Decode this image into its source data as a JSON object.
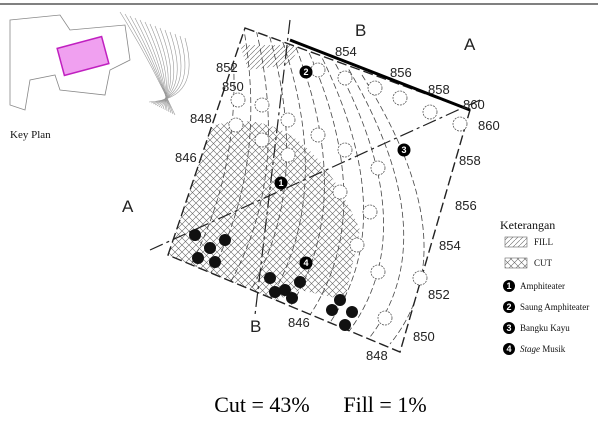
{
  "key_plan": {
    "label": "Key Plan"
  },
  "section_markers": [
    "B",
    "A",
    "A",
    "B"
  ],
  "contour_labels": [
    "852",
    "850",
    "848",
    "846",
    "854",
    "856",
    "858",
    "860",
    "860",
    "858",
    "856",
    "854",
    "852",
    "850",
    "848",
    "846"
  ],
  "plan_markers": [
    "1",
    "2",
    "3",
    "4"
  ],
  "legend": {
    "title": "Keterangan",
    "hatch_items": [
      "FILL",
      "CUT"
    ],
    "items": [
      {
        "number": "1",
        "label": "Amphiteater"
      },
      {
        "number": "2",
        "label": "Saung Amphiteater"
      },
      {
        "number": "3",
        "label": "Bangku Kayu"
      },
      {
        "number": "4",
        "label_italic": "Stage",
        "label": "Musik"
      }
    ]
  },
  "caption": {
    "cut": "Cut = 43%",
    "fill": "Fill = 1%"
  }
}
